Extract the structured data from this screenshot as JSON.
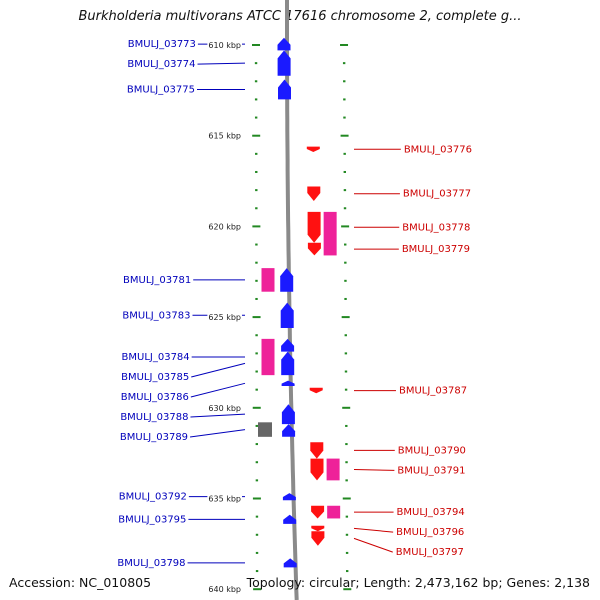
{
  "title": "Burkholderia multivorans ATCC 17616 chromosome 2, complete g...",
  "footer": {
    "accession": "Accession: NC_010805",
    "topology": "Topology: circular; Length: 2,473,162 bp; Genes: 2,138"
  },
  "colors": {
    "forward_cds": "#1a1aff",
    "forward_other": "#ee2299",
    "reverse_cds": "#ff1111",
    "reverse_other": "#ee2299",
    "pseudo": "#666666",
    "left_label": "#0000bb",
    "right_label": "#cc0000",
    "tick": "#228822",
    "backbone": "#8a8a8a"
  },
  "kbp_marks": [
    {
      "label": "610 kbp",
      "kbp": 610
    },
    {
      "label": "615 kbp",
      "kbp": 615
    },
    {
      "label": "620 kbp",
      "kbp": 620
    },
    {
      "label": "625 kbp",
      "kbp": 625
    },
    {
      "label": "630 kbp",
      "kbp": 630
    },
    {
      "label": "635 kbp",
      "kbp": 635
    },
    {
      "label": "640 kbp",
      "kbp": 640
    }
  ],
  "genes": [
    {
      "name": "BMULJ_03773",
      "strand": "+",
      "kind": "cds",
      "start_kbp": 609.6,
      "end_kbp": 610.3
    },
    {
      "name": "BMULJ_03774",
      "strand": "+",
      "kind": "cds",
      "start_kbp": 610.3,
      "end_kbp": 611.7
    },
    {
      "name": "BMULJ_03775",
      "strand": "+",
      "kind": "cds",
      "start_kbp": 611.9,
      "end_kbp": 613.0
    },
    {
      "name": "BMULJ_03776",
      "strand": "-",
      "kind": "cds",
      "start_kbp": 615.6,
      "end_kbp": 615.9
    },
    {
      "name": "BMULJ_03777",
      "strand": "-",
      "kind": "cds",
      "start_kbp": 617.8,
      "end_kbp": 618.6
    },
    {
      "name": "BMULJ_03778",
      "strand": "-",
      "kind": "cds",
      "start_kbp": 619.2,
      "end_kbp": 620.9
    },
    {
      "name": "BMULJ_03778",
      "strand": "-",
      "kind": "other",
      "start_kbp": 619.2,
      "end_kbp": 621.6,
      "hide_label": true
    },
    {
      "name": "BMULJ_03779",
      "strand": "-",
      "kind": "cds",
      "start_kbp": 620.9,
      "end_kbp": 621.6
    },
    {
      "name": "BMULJ_03781",
      "strand": "+",
      "kind": "other",
      "start_kbp": 622.3,
      "end_kbp": 623.6
    },
    {
      "name": "BMULJ_03781",
      "strand": "+",
      "kind": "cds",
      "start_kbp": 622.3,
      "end_kbp": 623.6,
      "hide_label": true
    },
    {
      "name": "BMULJ_03783",
      "strand": "+",
      "kind": "cds",
      "start_kbp": 624.2,
      "end_kbp": 625.6
    },
    {
      "name": "BMULJ_03784",
      "strand": "+",
      "kind": "other",
      "start_kbp": 626.2,
      "end_kbp": 628.2
    },
    {
      "name": "BMULJ_03784",
      "strand": "+",
      "kind": "cds",
      "start_kbp": 626.2,
      "end_kbp": 626.9,
      "hide_label": true
    },
    {
      "name": "BMULJ_03785",
      "strand": "+",
      "kind": "cds",
      "start_kbp": 626.9,
      "end_kbp": 628.2
    },
    {
      "name": "BMULJ_03786",
      "strand": "+",
      "kind": "cds",
      "start_kbp": 628.5,
      "end_kbp": 628.8
    },
    {
      "name": "BMULJ_03787",
      "strand": "-",
      "kind": "cds",
      "start_kbp": 628.9,
      "end_kbp": 629.2
    },
    {
      "name": "BMULJ_03788",
      "strand": "+",
      "kind": "cds",
      "start_kbp": 629.8,
      "end_kbp": 630.9
    },
    {
      "name": "BMULJ_03789",
      "strand": "+",
      "kind": "pseudo",
      "start_kbp": 630.8,
      "end_kbp": 631.6
    },
    {
      "name": "BMULJ_03789",
      "strand": "+",
      "kind": "cds",
      "start_kbp": 630.9,
      "end_kbp": 631.6,
      "hide_label": true
    },
    {
      "name": "BMULJ_03790",
      "strand": "-",
      "kind": "cds",
      "start_kbp": 631.9,
      "end_kbp": 632.8
    },
    {
      "name": "BMULJ_03791",
      "strand": "-",
      "kind": "cds",
      "start_kbp": 632.8,
      "end_kbp": 634.0
    },
    {
      "name": "BMULJ_03791",
      "strand": "-",
      "kind": "other",
      "start_kbp": 632.8,
      "end_kbp": 634.0,
      "hide_label": true
    },
    {
      "name": "BMULJ_03792",
      "strand": "+",
      "kind": "cds",
      "start_kbp": 634.7,
      "end_kbp": 635.1
    },
    {
      "name": "BMULJ_03794",
      "strand": "-",
      "kind": "cds",
      "start_kbp": 635.4,
      "end_kbp": 636.1
    },
    {
      "name": "BMULJ_03794",
      "strand": "-",
      "kind": "other",
      "start_kbp": 635.4,
      "end_kbp": 636.1,
      "hide_label": true
    },
    {
      "name": "BMULJ_03795",
      "strand": "+",
      "kind": "cds",
      "start_kbp": 635.9,
      "end_kbp": 636.4
    },
    {
      "name": "BMULJ_03796",
      "strand": "-",
      "kind": "cds",
      "start_kbp": 636.5,
      "end_kbp": 636.8
    },
    {
      "name": "BMULJ_03797",
      "strand": "-",
      "kind": "cds",
      "start_kbp": 636.8,
      "end_kbp": 637.6
    },
    {
      "name": "BMULJ_03798",
      "strand": "+",
      "kind": "cds",
      "start_kbp": 638.3,
      "end_kbp": 638.8
    }
  ]
}
